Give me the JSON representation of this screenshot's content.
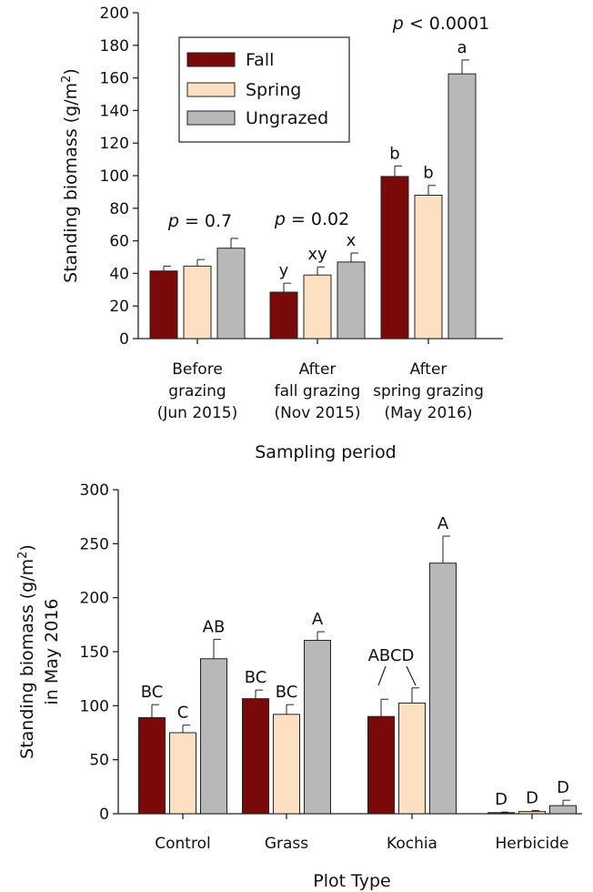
{
  "chart_data": [
    {
      "type": "bar",
      "title": "",
      "xlabel": "Sampling period",
      "ylabel": "Standing biomass (g/m",
      "ylabel_sup": "2",
      "ylabel_close": ")",
      "ylim": [
        0,
        200
      ],
      "yticks": [
        "0",
        "20",
        "40",
        "60",
        "80",
        "100",
        "120",
        "140",
        "160",
        "180",
        "200"
      ],
      "yticks_values": [
        0,
        20,
        40,
        60,
        80,
        100,
        120,
        140,
        160,
        180,
        200
      ],
      "categories": [
        [
          "Before",
          "grazing",
          "(Jun 2015)"
        ],
        [
          "After",
          "fall grazing",
          "(Nov 2015)"
        ],
        [
          "After",
          "spring grazing",
          "(May 2016)"
        ]
      ],
      "series": [
        {
          "name": "Fall",
          "values": [
            41.5,
            28.5,
            99.5
          ],
          "errors": [
            3,
            5.5,
            6.5
          ],
          "letters": [
            "",
            "y",
            "b"
          ]
        },
        {
          "name": "Spring",
          "values": [
            44.5,
            39,
            88
          ],
          "errors": [
            4,
            5,
            6
          ],
          "letters": [
            "",
            "xy",
            "b"
          ]
        },
        {
          "name": "Ungrazed",
          "values": [
            55.5,
            47,
            162.5
          ],
          "errors": [
            6,
            5.5,
            8.5
          ],
          "letters": [
            "",
            "x",
            "a"
          ]
        }
      ],
      "p_values": [
        {
          "p": "p",
          "rest": " = 0.7"
        },
        {
          "p": "p",
          "rest": " = 0.02"
        },
        {
          "p": "p",
          "rest": " < 0.0001"
        }
      ],
      "legend": {
        "position": "top-left",
        "entries": [
          "Fall",
          "Spring",
          "Ungrazed"
        ]
      },
      "grid": false
    },
    {
      "type": "bar",
      "title": "",
      "xlabel": "Plot Type",
      "ylabel_line1": "Standing biomass (g/m",
      "ylabel_sup": "2",
      "ylabel_close": ")",
      "ylabel_line2": "in May 2016",
      "ylim": [
        0,
        300
      ],
      "yticks": [
        "0",
        "50",
        "100",
        "150",
        "200",
        "250",
        "300"
      ],
      "yticks_values": [
        0,
        50,
        100,
        150,
        200,
        250,
        300
      ],
      "categories": [
        "Control",
        "Grass",
        "Kochia",
        "Herbicide"
      ],
      "series": [
        {
          "name": "Fall",
          "values": [
            89,
            106.5,
            90,
            1
          ],
          "errors": [
            12,
            8,
            16,
            0.5
          ],
          "letters": [
            "BC",
            "BC",
            "",
            "D"
          ]
        },
        {
          "name": "Spring",
          "values": [
            75,
            92,
            102.5,
            2
          ],
          "errors": [
            7,
            9,
            14,
            1
          ],
          "letters": [
            "C",
            "BC",
            "",
            "D"
          ]
        },
        {
          "name": "Ungrazed",
          "values": [
            143.5,
            160.5,
            232,
            7.5
          ],
          "errors": [
            18,
            8,
            25,
            5
          ],
          "letters": [
            "AB",
            "A",
            "A",
            "D"
          ]
        }
      ],
      "shared_letter": {
        "category_index": 2,
        "text": "ABCD"
      },
      "grid": false
    }
  ],
  "colors": {
    "fall": "#7a0a0a",
    "spring": "#fde0c2",
    "ungrazed": "#b8b8b8"
  }
}
